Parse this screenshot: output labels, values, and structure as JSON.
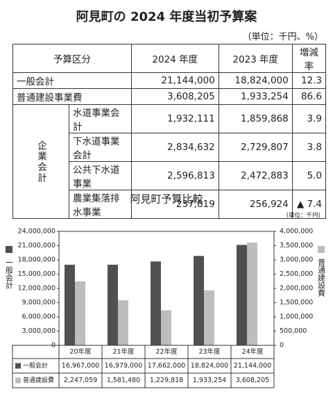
{
  "title": "阿見町の 2024 年度当初予算案",
  "unit": "（単位：千円、%）",
  "table": {
    "header": [
      "予算区分",
      "2024 年度",
      "2023 年度",
      "増減率"
    ],
    "group_label": "企業会計",
    "rows": [
      [
        "一般会計",
        "21,144,000",
        "18,824,000",
        "12.3"
      ],
      [
        "普通建設事業費",
        "3,608,205",
        "1,933,254",
        "86.6"
      ],
      [
        "水道事業会計",
        "1,932,111",
        "1,859,868",
        "3.9"
      ],
      [
        "下水道事業会計",
        "2,834,632",
        "2,729,807",
        "3.8"
      ],
      [
        "公共下水道事業",
        "2,596,813",
        "2,472,883",
        "5.0"
      ],
      [
        "農業集落排水事業",
        "237,819",
        "256,924",
        "▲ 7.4"
      ]
    ]
  },
  "chart_data": {
    "type": "bar",
    "title": "阿見町予算比較",
    "unit": "(単位：千円)",
    "y_label": "一般会計",
    "y2_label": "普通建設費",
    "categories": [
      "20年度",
      "21年度",
      "22年度",
      "23年度",
      "24年度"
    ],
    "series": [
      {
        "name": "一般会計",
        "color": "#505050",
        "values": [
          16967000,
          16979000,
          17662000,
          18824000,
          21144000
        ],
        "value_labels": [
          "16,967,000",
          "16,979,000",
          "17,662,000",
          "18,824,000",
          "21,144,000"
        ]
      },
      {
        "name": "普通建設費",
        "color": "#bdbdbd",
        "axis": "y2",
        "values": [
          2247059,
          1581480,
          1229818,
          1933254,
          3608205
        ],
        "value_labels": [
          "2,247,059",
          "1,581,480",
          "1,229,818",
          "1,933,254",
          "3,608,205"
        ]
      }
    ],
    "ylim": [
      0,
      24000000
    ],
    "yticks": [
      0,
      {
        "value": 3000000,
        "label": "3,000,000"
      },
      {
        "value": 6000000,
        "label": "6,000,000"
      },
      {
        "value": 9000000,
        "label": "9,000,000"
      },
      {
        "value": 12000000,
        "label": "12,000,000"
      },
      {
        "value": 15000000,
        "label": "15,000,000"
      },
      {
        "value": 18000000,
        "label": "18,000,000"
      },
      {
        "value": 21000000,
        "label": "21,000,000"
      },
      {
        "value": 24000000,
        "label": "24,000,000"
      }
    ],
    "y2lim": [
      0,
      4000000
    ],
    "y2ticks": [
      0,
      {
        "value": 500000,
        "label": "500,000"
      },
      {
        "value": 1000000,
        "label": "1,000,000"
      },
      {
        "value": 1500000,
        "label": "1,500,000"
      },
      {
        "value": 2000000,
        "label": "2,000,000"
      },
      {
        "value": 2500000,
        "label": "2,500,000"
      },
      {
        "value": 3000000,
        "label": "3,000,000"
      },
      {
        "value": 3500000,
        "label": "3,500,000"
      },
      {
        "value": 4000000,
        "label": "4,000,000"
      }
    ]
  }
}
